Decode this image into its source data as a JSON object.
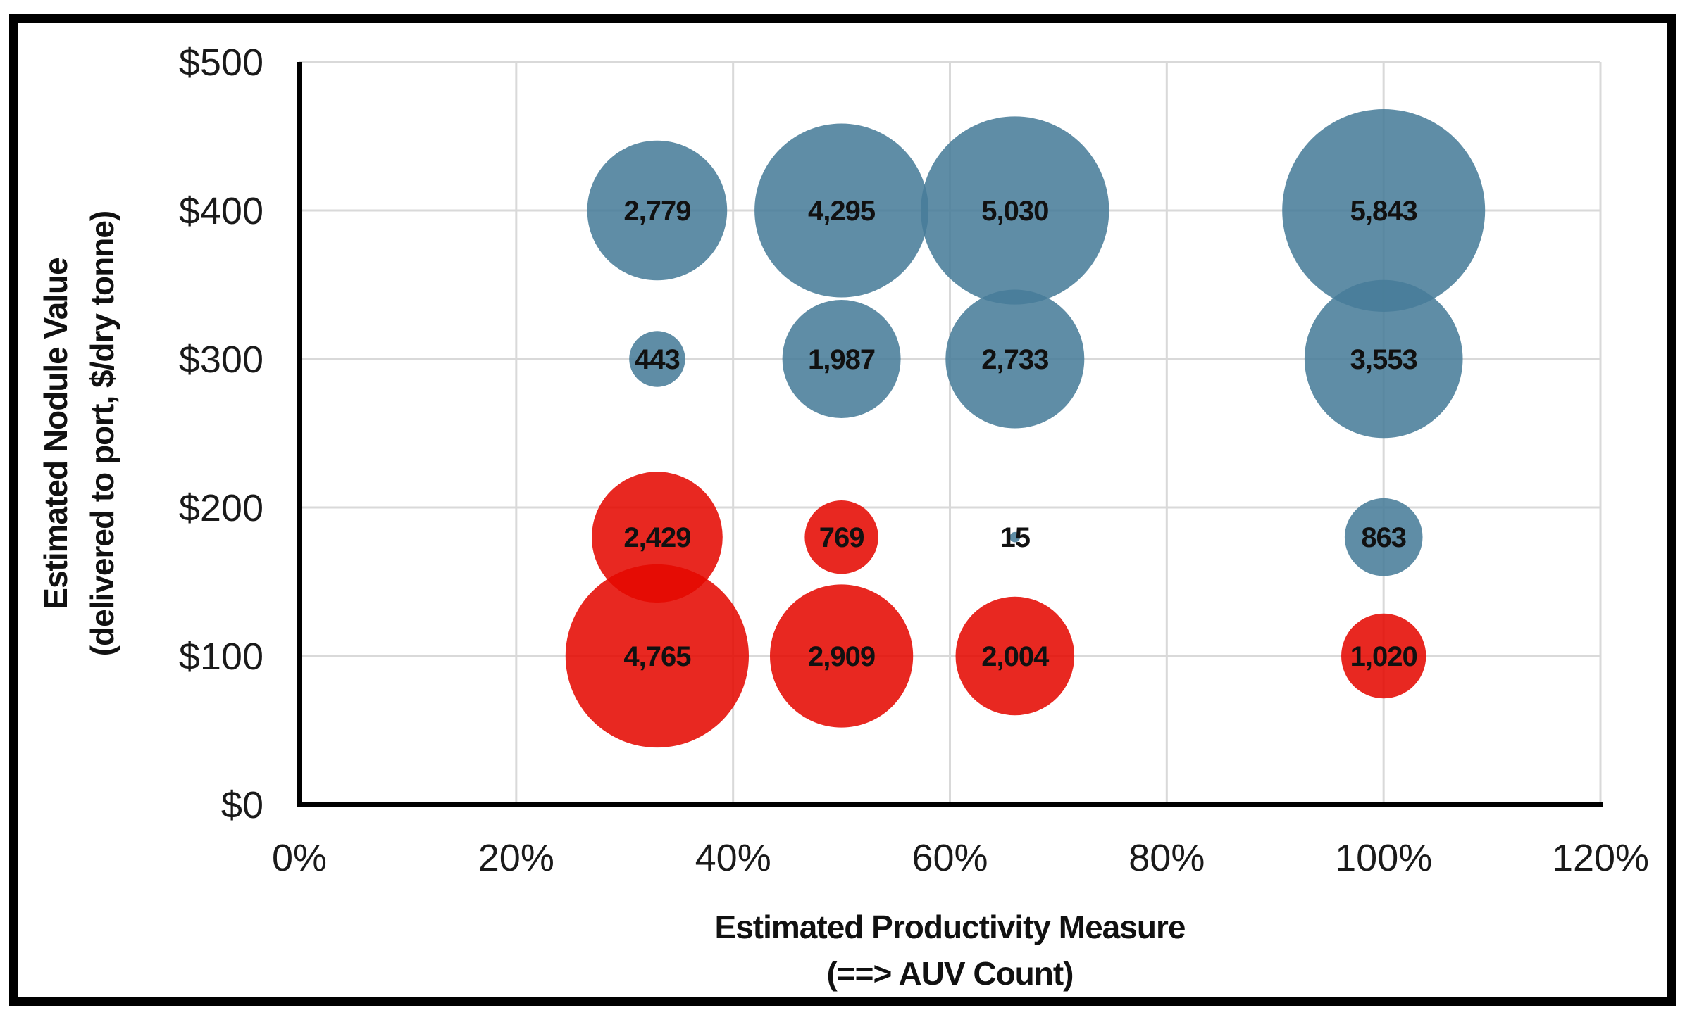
{
  "chart_data": {
    "type": "scatter",
    "variant": "bubble",
    "title": "",
    "xlabel_lines": [
      "Estimated Productivity Measure",
      "(==> AUV Count)"
    ],
    "ylabel_lines": [
      "Estimated Nodule Value",
      "(delivered to port, $/dry tonne)"
    ],
    "xlim": [
      0,
      120
    ],
    "ylim": [
      0,
      500
    ],
    "grid": true,
    "legend": "none",
    "x_ticks": [
      {
        "value": 0,
        "label": "0%"
      },
      {
        "value": 20,
        "label": "20%"
      },
      {
        "value": 40,
        "label": "40%"
      },
      {
        "value": 60,
        "label": "60%"
      },
      {
        "value": 80,
        "label": "80%"
      },
      {
        "value": 100,
        "label": "100%"
      },
      {
        "value": 120,
        "label": "120%"
      }
    ],
    "y_ticks": [
      {
        "value": 0,
        "label": "$0"
      },
      {
        "value": 100,
        "label": "$100"
      },
      {
        "value": 200,
        "label": "$200"
      },
      {
        "value": 300,
        "label": "$300"
      },
      {
        "value": 400,
        "label": "$400"
      },
      {
        "value": 500,
        "label": "$500"
      }
    ],
    "colors": {
      "blue": "#477C99",
      "red": "#E50800",
      "grid": "#D9D9D9",
      "axis": "#000000",
      "frame": "#000000",
      "label": "#111111"
    },
    "bubble_opacity": 0.87,
    "series": [
      {
        "name": "blue-bubbles",
        "color_key": "blue",
        "points": [
          {
            "x": 33,
            "y": 400,
            "value": 2779,
            "label": "2,779"
          },
          {
            "x": 50,
            "y": 400,
            "value": 4295,
            "label": "4,295"
          },
          {
            "x": 66,
            "y": 400,
            "value": 5030,
            "label": "5,030"
          },
          {
            "x": 100,
            "y": 400,
            "value": 5843,
            "label": "5,843"
          },
          {
            "x": 33,
            "y": 300,
            "value": 443,
            "label": "443"
          },
          {
            "x": 50,
            "y": 300,
            "value": 1987,
            "label": "1,987"
          },
          {
            "x": 66,
            "y": 300,
            "value": 2733,
            "label": "2,733"
          },
          {
            "x": 100,
            "y": 300,
            "value": 3553,
            "label": "3,553"
          },
          {
            "x": 66,
            "y": 180,
            "value": 15,
            "label": "15"
          },
          {
            "x": 100,
            "y": 180,
            "value": 863,
            "label": "863"
          }
        ]
      },
      {
        "name": "red-bubbles",
        "color_key": "red",
        "points": [
          {
            "x": 33,
            "y": 180,
            "value": 2429,
            "label": "2,429"
          },
          {
            "x": 50,
            "y": 180,
            "value": 769,
            "label": "769"
          },
          {
            "x": 33,
            "y": 100,
            "value": 4765,
            "label": "4,765"
          },
          {
            "x": 50,
            "y": 100,
            "value": 2909,
            "label": "2,909"
          },
          {
            "x": 66,
            "y": 100,
            "value": 2004,
            "label": "2,004"
          },
          {
            "x": 100,
            "y": 100,
            "value": 1020,
            "label": "1,020"
          }
        ]
      }
    ]
  }
}
